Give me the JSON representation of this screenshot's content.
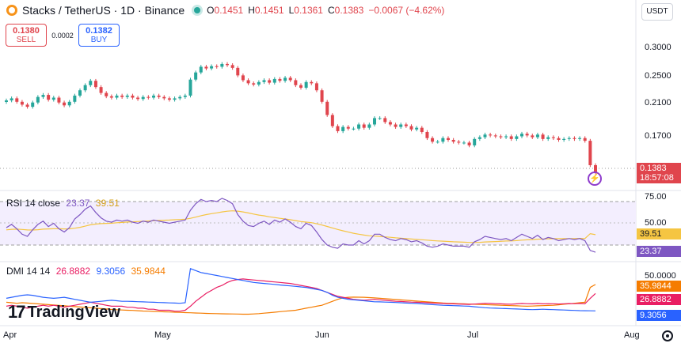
{
  "header": {
    "title": "Stacks / TetherUS · 1D · Binance",
    "o_label": "O",
    "o_val": "0.1451",
    "h_label": "H",
    "h_val": "0.1451",
    "l_label": "L",
    "l_val": "0.1361",
    "c_label": "C",
    "c_val": "0.1383",
    "change": "−0.0067 (−4.62%)"
  },
  "trade": {
    "sell_price": "0.1380",
    "sell_label": "SELL",
    "spread": "0.0002",
    "buy_price": "0.1382",
    "buy_label": "BUY"
  },
  "currency": "USDT",
  "price_axis": [
    "0.3000",
    "0.2500",
    "0.2100",
    "0.1700"
  ],
  "last_price": "0.1383",
  "countdown": "18:57:08",
  "rsi": {
    "label": "RSI 14 close",
    "v1": "23.37",
    "v2": "39.51",
    "axis": [
      "75.00",
      "50.00"
    ],
    "tag_ma": "39.51",
    "tag_rsi": "23.37"
  },
  "dmi": {
    "label": "DMI 14 14",
    "v1": "26.8882",
    "v2": "9.3056",
    "v3": "35.9844",
    "axis": [
      "50.0000"
    ],
    "tag_adx": "35.9844",
    "tag_plus": "26.8882",
    "tag_minus": "9.3056"
  },
  "x_labels": [
    "Apr",
    "May",
    "Jun",
    "Jul",
    "Aug"
  ],
  "brand": "TradingView",
  "colors": {
    "up": "#26a69a",
    "down": "#e0454d",
    "rsi": "#7e57c2",
    "rsi_ma": "#f5c542",
    "adx": "#f57c00",
    "plus_di": "#e91e63",
    "minus_di": "#2962ff"
  },
  "chart_data": [
    {
      "type": "candlestick",
      "title": "Stacks / TetherUS · 1D · Binance",
      "ylim": [
        0.125,
        0.36
      ],
      "log_scale": true,
      "x_labels": [
        "Apr",
        "May",
        "Jun",
        "Jul",
        "Aug"
      ],
      "closes": [
        0.221,
        0.224,
        0.219,
        0.215,
        0.212,
        0.218,
        0.226,
        0.229,
        0.222,
        0.225,
        0.218,
        0.214,
        0.219,
        0.228,
        0.236,
        0.244,
        0.251,
        0.241,
        0.232,
        0.227,
        0.225,
        0.228,
        0.226,
        0.228,
        0.225,
        0.223,
        0.226,
        0.225,
        0.228,
        0.226,
        0.224,
        0.222,
        0.224,
        0.226,
        0.228,
        0.253,
        0.265,
        0.275,
        0.272,
        0.276,
        0.275,
        0.28,
        0.278,
        0.273,
        0.26,
        0.252,
        0.247,
        0.245,
        0.249,
        0.252,
        0.248,
        0.254,
        0.251,
        0.256,
        0.252,
        0.244,
        0.24,
        0.249,
        0.247,
        0.236,
        0.219,
        0.201,
        0.187,
        0.181,
        0.186,
        0.184,
        0.184,
        0.189,
        0.185,
        0.189,
        0.197,
        0.197,
        0.192,
        0.189,
        0.186,
        0.189,
        0.187,
        0.183,
        0.185,
        0.18,
        0.173,
        0.169,
        0.169,
        0.173,
        0.171,
        0.169,
        0.168,
        0.168,
        0.165,
        0.172,
        0.174,
        0.177,
        0.176,
        0.175,
        0.174,
        0.175,
        0.172,
        0.175,
        0.178,
        0.176,
        0.174,
        0.177,
        0.172,
        0.174,
        0.173,
        0.171,
        0.172,
        0.173,
        0.172,
        0.173,
        0.17,
        0.1451,
        0.1383
      ]
    },
    {
      "type": "line",
      "title": "RSI 14 close",
      "ylim": [
        0,
        100
      ],
      "reference_lines": [
        70,
        50,
        30
      ],
      "series": [
        {
          "name": "RSI",
          "values": [
            46,
            49,
            45,
            40,
            38,
            44,
            49,
            52,
            47,
            50,
            45,
            42,
            46,
            54,
            58,
            63,
            66,
            60,
            55,
            52,
            51,
            53,
            52,
            53,
            51,
            50,
            52,
            51,
            53,
            52,
            51,
            50,
            51,
            52,
            53,
            62,
            68,
            72,
            70,
            71,
            70,
            73,
            71,
            68,
            58,
            52,
            48,
            47,
            50,
            52,
            49,
            53,
            51,
            54,
            51,
            47,
            45,
            50,
            48,
            42,
            35,
            30,
            28,
            27,
            31,
            30,
            30,
            34,
            31,
            34,
            40,
            40,
            37,
            35,
            34,
            36,
            35,
            33,
            34,
            32,
            29,
            28,
            29,
            31,
            30,
            29,
            29,
            29,
            28,
            33,
            35,
            38,
            37,
            36,
            35,
            36,
            34,
            37,
            40,
            38,
            36,
            39,
            35,
            37,
            36,
            34,
            35,
            36,
            35,
            36,
            34,
            25,
            23.37
          ]
        },
        {
          "name": "MA",
          "values": [
            44,
            44.5,
            44.6,
            44.3,
            43.9,
            43.8,
            44.1,
            44.6,
            44.8,
            45,
            45,
            44.8,
            44.9,
            45.5,
            46.3,
            47.4,
            48.6,
            49.3,
            49.7,
            49.9,
            50.1,
            50.5,
            50.8,
            51.2,
            51.4,
            51.6,
            51.9,
            52.1,
            52.4,
            52.6,
            52.8,
            53,
            53.3,
            53.5,
            53.8,
            54.6,
            55.7,
            57,
            58,
            58.9,
            59.6,
            60.5,
            61.1,
            61.5,
            61.2,
            60.5,
            59.5,
            58.5,
            57.6,
            56.9,
            56,
            55.3,
            54.6,
            54,
            53.3,
            52.5,
            51.6,
            51.1,
            50.6,
            49.6,
            48.4,
            47.1,
            45.7,
            44.3,
            43.1,
            41.9,
            40.8,
            40,
            39.2,
            38.5,
            38.2,
            37.9,
            37.5,
            37.1,
            36.6,
            36.3,
            35.9,
            35.5,
            35.2,
            34.9,
            34.5,
            34.1,
            33.8,
            33.6,
            33.3,
            33,
            32.8,
            32.6,
            32.4,
            32.4,
            32.5,
            32.8,
            33,
            33.2,
            33.4,
            33.7,
            33.8,
            34.1,
            34.5,
            34.8,
            35,
            35.4,
            35.5,
            35.7,
            35.8,
            35.9,
            35.9,
            36,
            36,
            36.1,
            36,
            40.5,
            39.51
          ]
        }
      ]
    },
    {
      "type": "line",
      "title": "DMI 14 14",
      "ylim": [
        0,
        55
      ],
      "series": [
        {
          "name": "ADX",
          "values": [
            18,
            17.5,
            17,
            17.5,
            17.2,
            16.8,
            16.4,
            16,
            15.6,
            15.2,
            14.8,
            14.4,
            14,
            13.6,
            13.2,
            12.8,
            12.4,
            12,
            11.6,
            11.2,
            10.8,
            10.5,
            10.2,
            10,
            9.8,
            9.5,
            9.2,
            9,
            8.8,
            8.6,
            8.4,
            8.2,
            8,
            7.8,
            7.6,
            7.4,
            7.2,
            7,
            6.8,
            6.6,
            6.5,
            6.4,
            6.3,
            6.2,
            6.1,
            6.0,
            6.0,
            6.2,
            6.5,
            7,
            7.5,
            8,
            8.5,
            9,
            9.5,
            10,
            11,
            12,
            13,
            14,
            15,
            17,
            19,
            21,
            22.5,
            23,
            23.2,
            23.1,
            23,
            22.7,
            22.4,
            22,
            21.6,
            21.2,
            20.8,
            20.4,
            20,
            19.6,
            19.2,
            18.8,
            18.4,
            18,
            17.6,
            17.2,
            17,
            16.8,
            16.6,
            16.4,
            16.2,
            16,
            15.8,
            15.6,
            15.4,
            15.2,
            15,
            14.8,
            14.6,
            14.4,
            14.2,
            14,
            14.2,
            14.4,
            14.6,
            14.8,
            15,
            15.5,
            16,
            16.5,
            17,
            17.5,
            18,
            33,
            35.9844
          ]
        },
        {
          "name": "+DI",
          "values": [
            14,
            15,
            14,
            13,
            12,
            13,
            14,
            15,
            14,
            15,
            14,
            13,
            14,
            15,
            16,
            17,
            18,
            17,
            16,
            15,
            14,
            14,
            14,
            13,
            13,
            12,
            12,
            11,
            11,
            10,
            10,
            10,
            9,
            9,
            10,
            14,
            19,
            23,
            27,
            30,
            33,
            35,
            38,
            40,
            41,
            41.5,
            41,
            40.5,
            40,
            39.5,
            39,
            38.5,
            38,
            37.5,
            37,
            36,
            35,
            34,
            33,
            32,
            30,
            28,
            26,
            24,
            23,
            22,
            21,
            20.5,
            20,
            20.5,
            21,
            20.5,
            20,
            19.5,
            19,
            18.8,
            18.5,
            18.2,
            18,
            17.8,
            17.5,
            17.2,
            17,
            16.8,
            16.6,
            16.4,
            16.2,
            16,
            15.9,
            16.2,
            16.6,
            17,
            16.8,
            16.6,
            16.4,
            16.2,
            16,
            16.4,
            16.8,
            16.6,
            16.4,
            16.8,
            16.4,
            16.6,
            16.5,
            16.3,
            16.5,
            16.7,
            16.6,
            16.8,
            16.5,
            22,
            26.8882
          ]
        },
        {
          "name": "−DI",
          "values": [
            22,
            23,
            24,
            25,
            25.5,
            25,
            24,
            23,
            22.5,
            22,
            22.5,
            23,
            22,
            21,
            20,
            19,
            18,
            18.5,
            19,
            19.5,
            20,
            19.5,
            19,
            19,
            18.8,
            18.6,
            18.4,
            18.2,
            18,
            17.8,
            17.6,
            17.4,
            17.2,
            17,
            17.5,
            52,
            50,
            48,
            47,
            46,
            45,
            44,
            43,
            42,
            41,
            40,
            39,
            38,
            37.5,
            37,
            36.5,
            36,
            35.5,
            35,
            34.5,
            34,
            33.5,
            33,
            32,
            31,
            30,
            28,
            25,
            23,
            22,
            21,
            20.5,
            20,
            19.5,
            19,
            18.5,
            18.4,
            18.2,
            18,
            17.8,
            17.5,
            17.2,
            17,
            16.8,
            16.4,
            16,
            15.6,
            15.3,
            15,
            14.8,
            14.6,
            14.4,
            14.2,
            14,
            13.5,
            13,
            12.5,
            12.2,
            12,
            11.8,
            11.6,
            11.4,
            11.2,
            11,
            10.8,
            10.6,
            10.8,
            11,
            10.8,
            10.6,
            10.4,
            10.2,
            10,
            9.8,
            9.6,
            9.5,
            9.4,
            9.3056
          ]
        }
      ]
    }
  ]
}
